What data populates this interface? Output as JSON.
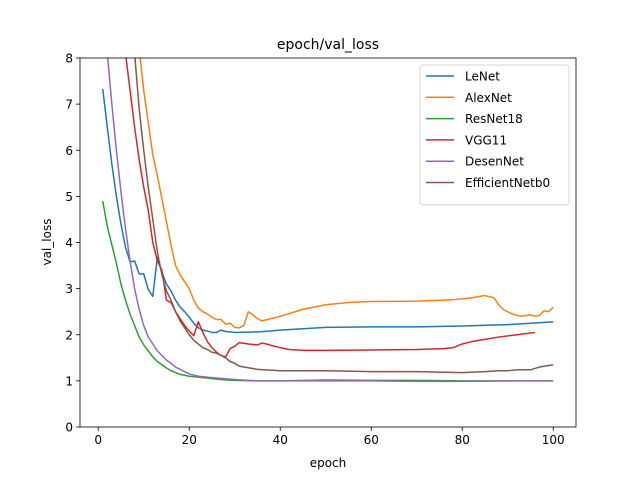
{
  "chart_data": {
    "type": "line",
    "title": "epoch/val_loss",
    "xlabel": "epoch",
    "ylabel": "val_loss",
    "xlim": [
      -4,
      105
    ],
    "ylim": [
      0,
      8
    ],
    "xticks": [
      0,
      20,
      40,
      60,
      80,
      100
    ],
    "yticks": [
      0,
      1,
      2,
      3,
      4,
      5,
      6,
      7,
      8
    ],
    "grid": false,
    "legend_position": "top-right",
    "series": [
      {
        "name": "LeNet",
        "color": "#1f77b4",
        "points": [
          [
            1,
            7.33
          ],
          [
            2,
            6.5
          ],
          [
            3,
            5.7
          ],
          [
            4,
            5.0
          ],
          [
            5,
            4.4
          ],
          [
            6,
            3.9
          ],
          [
            7,
            3.58
          ],
          [
            8,
            3.6
          ],
          [
            9,
            3.32
          ],
          [
            10,
            3.32
          ],
          [
            11,
            2.98
          ],
          [
            12,
            2.83
          ],
          [
            13,
            3.68
          ],
          [
            14,
            3.35
          ],
          [
            15,
            3.1
          ],
          [
            16,
            2.95
          ],
          [
            17,
            2.75
          ],
          [
            18,
            2.6
          ],
          [
            19,
            2.5
          ],
          [
            20,
            2.38
          ],
          [
            21,
            2.25
          ],
          [
            22,
            2.15
          ],
          [
            23,
            2.1
          ],
          [
            24,
            2.08
          ],
          [
            25,
            2.05
          ],
          [
            26,
            2.05
          ],
          [
            27,
            2.1
          ],
          [
            28,
            2.07
          ],
          [
            30,
            2.05
          ],
          [
            35,
            2.06
          ],
          [
            40,
            2.1
          ],
          [
            50,
            2.16
          ],
          [
            60,
            2.17
          ],
          [
            70,
            2.17
          ],
          [
            80,
            2.19
          ],
          [
            90,
            2.22
          ],
          [
            95,
            2.25
          ],
          [
            100,
            2.28
          ]
        ]
      },
      {
        "name": "AlexNet",
        "color": "#ff7f0e",
        "points": [
          [
            9,
            8.2
          ],
          [
            10,
            7.3
          ],
          [
            11,
            6.6
          ],
          [
            12,
            5.9
          ],
          [
            13,
            5.45
          ],
          [
            14,
            4.95
          ],
          [
            15,
            4.45
          ],
          [
            16,
            3.95
          ],
          [
            17,
            3.5
          ],
          [
            18,
            3.3
          ],
          [
            19,
            3.15
          ],
          [
            20,
            3.0
          ],
          [
            21,
            2.75
          ],
          [
            22,
            2.58
          ],
          [
            23,
            2.5
          ],
          [
            24,
            2.45
          ],
          [
            25,
            2.38
          ],
          [
            26,
            2.33
          ],
          [
            27,
            2.33
          ],
          [
            28,
            2.23
          ],
          [
            29,
            2.25
          ],
          [
            30,
            2.16
          ],
          [
            31,
            2.15
          ],
          [
            32,
            2.2
          ],
          [
            33,
            2.5
          ],
          [
            34,
            2.43
          ],
          [
            35,
            2.35
          ],
          [
            36,
            2.3
          ],
          [
            40,
            2.4
          ],
          [
            45,
            2.55
          ],
          [
            50,
            2.65
          ],
          [
            55,
            2.7
          ],
          [
            60,
            2.72
          ],
          [
            70,
            2.73
          ],
          [
            78,
            2.76
          ],
          [
            82,
            2.8
          ],
          [
            85,
            2.85
          ],
          [
            87,
            2.8
          ],
          [
            88,
            2.65
          ],
          [
            89,
            2.55
          ],
          [
            91,
            2.45
          ],
          [
            93,
            2.4
          ],
          [
            95,
            2.43
          ],
          [
            96,
            2.4
          ],
          [
            97,
            2.42
          ],
          [
            98,
            2.52
          ],
          [
            99,
            2.5
          ],
          [
            100,
            2.6
          ]
        ]
      },
      {
        "name": "ResNet18",
        "color": "#2ca02c",
        "points": [
          [
            1,
            4.9
          ],
          [
            2,
            4.35
          ],
          [
            3,
            3.95
          ],
          [
            4,
            3.55
          ],
          [
            5,
            3.1
          ],
          [
            6,
            2.75
          ],
          [
            7,
            2.45
          ],
          [
            8,
            2.2
          ],
          [
            9,
            1.95
          ],
          [
            10,
            1.78
          ],
          [
            11,
            1.65
          ],
          [
            12,
            1.52
          ],
          [
            13,
            1.42
          ],
          [
            14,
            1.35
          ],
          [
            15,
            1.28
          ],
          [
            16,
            1.22
          ],
          [
            17,
            1.18
          ],
          [
            18,
            1.14
          ],
          [
            20,
            1.1
          ],
          [
            22,
            1.08
          ],
          [
            25,
            1.05
          ],
          [
            28,
            1.02
          ],
          [
            30,
            1.01
          ],
          [
            35,
            1.0
          ],
          [
            40,
            1.0
          ],
          [
            50,
            1.02
          ],
          [
            60,
            1.01
          ],
          [
            70,
            1.01
          ],
          [
            80,
            1.0
          ],
          [
            90,
            1.0
          ],
          [
            100,
            1.0
          ]
        ]
      },
      {
        "name": "VGG11",
        "color": "#d62728",
        "points": [
          [
            6,
            8.1
          ],
          [
            7,
            7.3
          ],
          [
            8,
            6.5
          ],
          [
            9,
            5.8
          ],
          [
            10,
            5.2
          ],
          [
            11,
            4.7
          ],
          [
            12,
            4.0
          ],
          [
            13,
            3.6
          ],
          [
            14,
            3.4
          ],
          [
            15,
            2.75
          ],
          [
            16,
            2.7
          ],
          [
            17,
            2.5
          ],
          [
            18,
            2.35
          ],
          [
            19,
            2.2
          ],
          [
            20,
            2.08
          ],
          [
            21,
            1.98
          ],
          [
            22,
            2.28
          ],
          [
            23,
            2.05
          ],
          [
            24,
            1.85
          ],
          [
            25,
            1.72
          ],
          [
            26,
            1.62
          ],
          [
            27,
            1.55
          ],
          [
            28,
            1.52
          ],
          [
            29,
            1.7
          ],
          [
            30,
            1.75
          ],
          [
            31,
            1.83
          ],
          [
            33,
            1.8
          ],
          [
            35,
            1.78
          ],
          [
            36,
            1.82
          ],
          [
            37,
            1.8
          ],
          [
            38,
            1.77
          ],
          [
            40,
            1.72
          ],
          [
            42,
            1.68
          ],
          [
            45,
            1.66
          ],
          [
            50,
            1.66
          ],
          [
            60,
            1.67
          ],
          [
            70,
            1.68
          ],
          [
            76,
            1.7
          ],
          [
            78,
            1.72
          ],
          [
            80,
            1.8
          ],
          [
            82,
            1.85
          ],
          [
            85,
            1.9
          ],
          [
            88,
            1.95
          ],
          [
            92,
            2.0
          ],
          [
            96,
            2.05
          ]
        ]
      },
      {
        "name": "DesenNet",
        "color": "#9467bd",
        "points": [
          [
            2,
            8.1
          ],
          [
            3,
            7.0
          ],
          [
            4,
            6.0
          ],
          [
            5,
            5.1
          ],
          [
            6,
            4.3
          ],
          [
            7,
            3.6
          ],
          [
            8,
            3.0
          ],
          [
            9,
            2.55
          ],
          [
            10,
            2.2
          ],
          [
            11,
            1.95
          ],
          [
            12,
            1.8
          ],
          [
            13,
            1.65
          ],
          [
            14,
            1.55
          ],
          [
            15,
            1.45
          ],
          [
            16,
            1.38
          ],
          [
            17,
            1.3
          ],
          [
            18,
            1.25
          ],
          [
            20,
            1.15
          ],
          [
            22,
            1.1
          ],
          [
            25,
            1.07
          ],
          [
            30,
            1.03
          ],
          [
            35,
            1.0
          ],
          [
            40,
            1.0
          ],
          [
            50,
            1.0
          ],
          [
            60,
            1.0
          ],
          [
            70,
            0.99
          ],
          [
            80,
            0.99
          ],
          [
            90,
            1.0
          ],
          [
            100,
            1.0
          ]
        ]
      },
      {
        "name": "EfficientNetb0",
        "color": "#8c564b",
        "points": [
          [
            8,
            8.1
          ],
          [
            9,
            6.9
          ],
          [
            10,
            6.0
          ],
          [
            11,
            5.2
          ],
          [
            12,
            4.5
          ],
          [
            13,
            3.8
          ],
          [
            14,
            3.3
          ],
          [
            15,
            2.95
          ],
          [
            16,
            2.75
          ],
          [
            17,
            2.5
          ],
          [
            18,
            2.3
          ],
          [
            19,
            2.15
          ],
          [
            20,
            2.0
          ],
          [
            21,
            1.88
          ],
          [
            22,
            1.8
          ],
          [
            23,
            1.72
          ],
          [
            24,
            1.68
          ],
          [
            25,
            1.62
          ],
          [
            26,
            1.6
          ],
          [
            27,
            1.55
          ],
          [
            28,
            1.5
          ],
          [
            29,
            1.42
          ],
          [
            30,
            1.38
          ],
          [
            31,
            1.32
          ],
          [
            32,
            1.3
          ],
          [
            35,
            1.25
          ],
          [
            40,
            1.22
          ],
          [
            45,
            1.22
          ],
          [
            50,
            1.22
          ],
          [
            60,
            1.2
          ],
          [
            70,
            1.2
          ],
          [
            80,
            1.18
          ],
          [
            85,
            1.2
          ],
          [
            88,
            1.22
          ],
          [
            90,
            1.22
          ],
          [
            92,
            1.24
          ],
          [
            95,
            1.24
          ],
          [
            97,
            1.3
          ],
          [
            100,
            1.35
          ]
        ]
      }
    ]
  }
}
